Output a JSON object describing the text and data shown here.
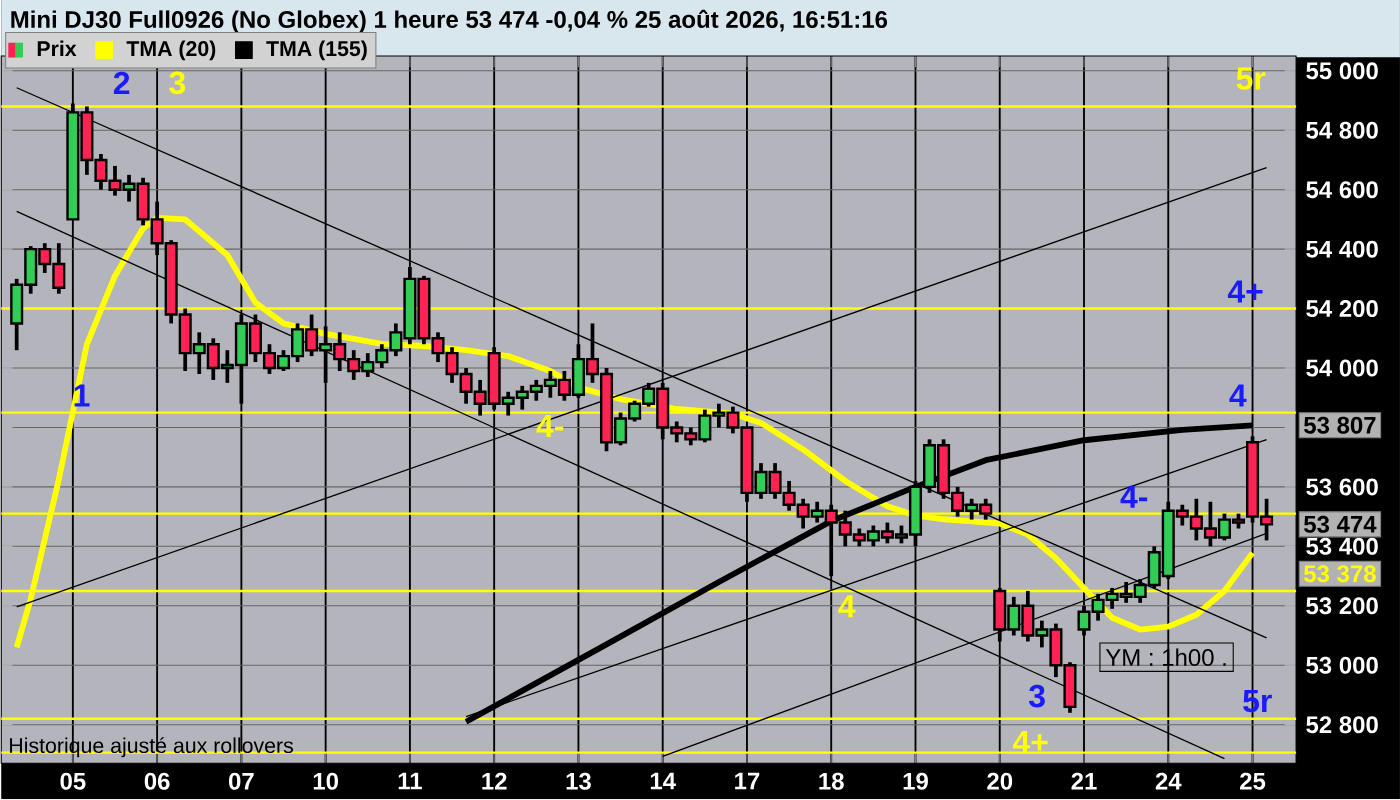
{
  "chart_data": {
    "type": "candlestick",
    "title": "Mini DJ30 Full0926 (No Globex) 1 heure 53 474 -0,04 % 25 août 2026, 16:51:16",
    "categories": [
      null,
      null,
      null,
      null,
      "05",
      null,
      null,
      null,
      null,
      null,
      "06",
      null,
      null,
      null,
      null,
      null,
      "07",
      null,
      null,
      null,
      null,
      null,
      "10",
      null,
      null,
      null,
      null,
      null,
      "11",
      null,
      null,
      null,
      null,
      null,
      "12",
      null,
      null,
      null,
      null,
      null,
      "13",
      null,
      null,
      null,
      null,
      null,
      "14",
      null,
      null,
      null,
      null,
      null,
      "17",
      null,
      null,
      null,
      null,
      null,
      "18",
      null,
      null,
      null,
      null,
      null,
      "19",
      null,
      null,
      null,
      null,
      null,
      "20",
      null,
      null,
      null,
      null,
      null,
      "21",
      null,
      null,
      null,
      null,
      null,
      "24",
      null,
      null,
      null,
      null,
      null,
      "25",
      null
    ],
    "ylim": [
      52670,
      55050
    ],
    "yticks": [
      {
        "value": 52800,
        "label": "52 800"
      },
      {
        "value": 53000,
        "label": "53 000"
      },
      {
        "value": 53200,
        "label": "53 200"
      },
      {
        "value": 53400,
        "label": "53 400"
      },
      {
        "value": 53600,
        "label": "53 600"
      },
      {
        "value": 53800,
        "label": null
      },
      {
        "value": 54000,
        "label": "54 000"
      },
      {
        "value": 54200,
        "label": "54 200"
      },
      {
        "value": 54400,
        "label": "54 400"
      },
      {
        "value": 54600,
        "label": "54 600"
      },
      {
        "value": 54800,
        "label": "54 800"
      },
      {
        "value": 55000,
        "label": "55 000"
      }
    ],
    "grid": true,
    "legend": "top left",
    "series": [
      {
        "name": "Prix",
        "ohlc": [
          [
            54150,
            54300,
            54060,
            54280
          ],
          [
            54280,
            54410,
            54250,
            54400
          ],
          [
            54400,
            54420,
            54320,
            54350
          ],
          [
            54350,
            54420,
            54250,
            54270
          ],
          [
            54500,
            54890,
            54500,
            54860
          ],
          [
            54860,
            54880,
            54650,
            54700
          ],
          [
            54700,
            54720,
            54600,
            54630
          ],
          [
            54630,
            54680,
            54580,
            54600
          ],
          [
            54600,
            54650,
            54560,
            54620
          ],
          [
            54620,
            54640,
            54480,
            54500
          ],
          [
            54500,
            54560,
            54380,
            54420
          ],
          [
            54420,
            54430,
            54150,
            54180
          ],
          [
            54180,
            54200,
            53990,
            54050
          ],
          [
            54050,
            54120,
            53980,
            54080
          ],
          [
            54080,
            54100,
            53960,
            54000
          ],
          [
            54000,
            54060,
            53950,
            54010
          ],
          [
            54010,
            54180,
            53880,
            54150
          ],
          [
            54150,
            54180,
            54020,
            54050
          ],
          [
            54050,
            54080,
            53980,
            54000
          ],
          [
            54000,
            54060,
            53990,
            54040
          ],
          [
            54040,
            54150,
            54020,
            54130
          ],
          [
            54130,
            54180,
            54040,
            54060
          ],
          [
            54060,
            54140,
            53950,
            54080
          ],
          [
            54080,
            54120,
            53990,
            54030
          ],
          [
            54030,
            54060,
            53960,
            53990
          ],
          [
            53990,
            54050,
            53970,
            54020
          ],
          [
            54020,
            54080,
            54000,
            54060
          ],
          [
            54060,
            54150,
            54040,
            54120
          ],
          [
            54100,
            54340,
            54080,
            54300
          ],
          [
            54300,
            54310,
            54080,
            54100
          ],
          [
            54100,
            54120,
            54020,
            54050
          ],
          [
            54050,
            54070,
            53950,
            53980
          ],
          [
            53980,
            54000,
            53880,
            53920
          ],
          [
            53920,
            53960,
            53840,
            53880
          ],
          [
            54050,
            54070,
            53860,
            53880
          ],
          [
            53880,
            53920,
            53840,
            53900
          ],
          [
            53900,
            53940,
            53860,
            53920
          ],
          [
            53920,
            53960,
            53890,
            53940
          ],
          [
            53940,
            53990,
            53900,
            53960
          ],
          [
            53960,
            53990,
            53890,
            53910
          ],
          [
            53910,
            54080,
            53900,
            54030
          ],
          [
            54030,
            54150,
            53950,
            53980
          ],
          [
            53980,
            54000,
            53720,
            53750
          ],
          [
            53750,
            53850,
            53740,
            53830
          ],
          [
            53830,
            53890,
            53820,
            53880
          ],
          [
            53880,
            53950,
            53870,
            53930
          ],
          [
            53930,
            53950,
            53760,
            53800
          ],
          [
            53800,
            53820,
            53750,
            53780
          ],
          [
            53780,
            53800,
            53740,
            53760
          ],
          [
            53760,
            53860,
            53750,
            53840
          ],
          [
            53840,
            53880,
            53800,
            53850
          ],
          [
            53850,
            53870,
            53780,
            53800
          ],
          [
            53800,
            53800,
            53550,
            53580
          ],
          [
            53580,
            53680,
            53560,
            53650
          ],
          [
            53650,
            53680,
            53560,
            53580
          ],
          [
            53580,
            53620,
            53520,
            53540
          ],
          [
            53540,
            53560,
            53460,
            53500
          ],
          [
            53500,
            53550,
            53480,
            53520
          ],
          [
            53520,
            53540,
            53300,
            53480
          ],
          [
            53480,
            53520,
            53400,
            53440
          ],
          [
            53440,
            53460,
            53400,
            53420
          ],
          [
            53420,
            53470,
            53400,
            53450
          ],
          [
            53450,
            53480,
            53410,
            53430
          ],
          [
            53430,
            53470,
            53410,
            53440
          ],
          [
            53440,
            53620,
            53400,
            53600
          ],
          [
            53600,
            53760,
            53580,
            53740
          ],
          [
            53740,
            53760,
            53560,
            53580
          ],
          [
            53580,
            53600,
            53500,
            53520
          ],
          [
            53520,
            53560,
            53490,
            53540
          ],
          [
            53540,
            53560,
            53490,
            53510
          ],
          [
            53250,
            53260,
            53080,
            53120
          ],
          [
            53120,
            53230,
            53100,
            53200
          ],
          [
            53200,
            53250,
            53080,
            53100
          ],
          [
            53100,
            53150,
            53060,
            53120
          ],
          [
            53120,
            53140,
            52960,
            53000
          ],
          [
            53000,
            53010,
            52840,
            52860
          ],
          [
            53120,
            53200,
            53100,
            53180
          ],
          [
            53180,
            53240,
            53150,
            53220
          ],
          [
            53220,
            53260,
            53190,
            53240
          ],
          [
            53240,
            53280,
            53210,
            53230
          ],
          [
            53230,
            53290,
            53210,
            53270
          ],
          [
            53270,
            53400,
            53260,
            53380
          ],
          [
            53300,
            53550,
            53290,
            53520
          ],
          [
            53520,
            53540,
            53470,
            53500
          ],
          [
            53500,
            53560,
            53420,
            53460
          ],
          [
            53460,
            53550,
            53400,
            53430
          ],
          [
            53430,
            53510,
            53420,
            53490
          ],
          [
            53490,
            53510,
            53460,
            53480
          ],
          [
            53750,
            53770,
            53480,
            53500
          ],
          [
            53500,
            53560,
            53420,
            53474
          ]
        ],
        "value_labels": [
          null,
          null,
          null,
          null,
          null,
          null,
          null,
          null,
          null,
          null,
          null,
          null,
          null,
          null,
          null,
          null,
          null,
          null,
          null,
          null,
          null,
          null,
          null,
          null,
          null,
          null,
          null,
          null,
          null,
          null,
          null,
          null,
          null,
          null,
          null,
          null,
          null,
          null,
          null,
          null,
          null,
          null,
          null,
          null,
          null,
          null,
          null,
          null,
          null,
          null,
          null,
          null,
          null,
          null,
          null,
          null,
          null,
          null,
          null,
          null,
          null,
          null,
          null,
          null,
          null,
          null,
          null,
          null,
          null,
          null,
          null,
          null,
          null,
          null,
          null,
          null,
          null,
          null,
          null,
          null,
          null,
          null,
          null,
          null,
          null,
          null,
          null,
          null,
          null,
          "53 474"
        ]
      },
      {
        "name": "TMA (20)",
        "type": "line",
        "color": "#ffff00",
        "values": [
          53060,
          53223,
          null,
          53625,
          null,
          54080,
          null,
          54310,
          null,
          54470,
          54505,
          null,
          54500,
          null,
          null,
          54380,
          null,
          54220,
          null,
          54150,
          null,
          null,
          54115,
          null,
          null,
          null,
          54081,
          null,
          null,
          54074,
          null,
          null,
          54060,
          null,
          null,
          54040,
          null,
          null,
          53990,
          null,
          53935,
          null,
          null,
          53895,
          null,
          null,
          null,
          53862,
          null,
          null,
          null,
          53846,
          null,
          53815,
          null,
          null,
          53726,
          null,
          null,
          53620,
          null,
          null,
          53535,
          null,
          53504,
          null,
          53491,
          null,
          53484,
          null,
          53477,
          null,
          53440,
          null,
          53360,
          null,
          53260,
          null,
          53160,
          null,
          53120,
          null,
          53130,
          null,
          53170,
          null,
          53250,
          null,
          53378,
          null
        ]
      },
      {
        "name": "TMA (155)",
        "type": "line",
        "color": "#000000",
        "values": [
          null,
          null,
          null,
          null,
          null,
          null,
          null,
          null,
          null,
          null,
          null,
          null,
          null,
          null,
          null,
          null,
          null,
          null,
          null,
          null,
          null,
          null,
          null,
          null,
          null,
          null,
          null,
          null,
          null,
          null,
          null,
          null,
          52810,
          null,
          null,
          null,
          null,
          null,
          null,
          null,
          null,
          null,
          53070,
          null,
          null,
          null,
          null,
          null,
          null,
          null,
          53280,
          null,
          null,
          null,
          null,
          null,
          null,
          null,
          53485,
          null,
          null,
          null,
          null,
          null,
          53600,
          null,
          null,
          null,
          null,
          53690,
          null,
          null,
          null,
          null,
          null,
          null,
          53757,
          null,
          null,
          null,
          null,
          null,
          null,
          53792,
          null,
          null,
          null,
          null,
          53807,
          null
        ]
      },
      {
        "type": "line",
        "color": "#000000",
        "values": [
          54943,
          null,
          null,
          null,
          null,
          null,
          null,
          null,
          null,
          null,
          null,
          null,
          null,
          null,
          null,
          null,
          null,
          null,
          null,
          null,
          null,
          null,
          null,
          null,
          null,
          null,
          null,
          null,
          null,
          null,
          null,
          null,
          null,
          null,
          null,
          null,
          null,
          null,
          null,
          null,
          null,
          null,
          null,
          null,
          null,
          null,
          null,
          null,
          null,
          null,
          null,
          null,
          null,
          null,
          null,
          null,
          null,
          null,
          null,
          null,
          null,
          null,
          null,
          null,
          null,
          null,
          null,
          null,
          null,
          null,
          null,
          null,
          null,
          null,
          null,
          null,
          null,
          null,
          null,
          null,
          null,
          null,
          null,
          null,
          null,
          null,
          null,
          null,
          null,
          53092
        ]
      },
      {
        "type": "line",
        "color": "#000000",
        "values": [
          54527,
          null,
          null,
          null,
          null,
          null,
          null,
          null,
          null,
          null,
          null,
          null,
          null,
          null,
          null,
          null,
          null,
          null,
          null,
          null,
          null,
          null,
          null,
          null,
          null,
          null,
          null,
          null,
          null,
          null,
          null,
          null,
          null,
          null,
          null,
          null,
          null,
          null,
          null,
          null,
          null,
          null,
          null,
          null,
          null,
          null,
          null,
          null,
          null,
          null,
          null,
          null,
          null,
          null,
          null,
          null,
          null,
          null,
          null,
          null,
          null,
          null,
          null,
          null,
          null,
          null,
          null,
          null,
          null,
          null,
          null,
          null,
          null,
          null,
          null,
          null,
          null,
          null,
          null,
          null,
          null,
          null,
          null,
          null,
          null,
          null,
          52686,
          null,
          null,
          null
        ]
      },
      {
        "type": "line",
        "color": "#000000",
        "values": [
          53196,
          null,
          null,
          null,
          null,
          null,
          null,
          null,
          null,
          null,
          null,
          null,
          null,
          null,
          null,
          null,
          null,
          null,
          null,
          null,
          null,
          null,
          null,
          null,
          null,
          null,
          null,
          null,
          null,
          null,
          null,
          null,
          null,
          null,
          null,
          null,
          null,
          null,
          null,
          null,
          null,
          null,
          null,
          null,
          null,
          null,
          null,
          null,
          null,
          null,
          null,
          null,
          null,
          null,
          null,
          null,
          null,
          null,
          null,
          null,
          null,
          null,
          null,
          null,
          null,
          null,
          null,
          null,
          null,
          null,
          null,
          null,
          null,
          null,
          null,
          null,
          null,
          null,
          null,
          null,
          null,
          null,
          null,
          null,
          null,
          null,
          null,
          null,
          null,
          54674
        ]
      },
      {
        "type": "line",
        "color": "#000000",
        "values": [
          null,
          null,
          null,
          null,
          null,
          null,
          null,
          null,
          null,
          null,
          null,
          null,
          null,
          null,
          null,
          null,
          null,
          null,
          null,
          null,
          null,
          null,
          null,
          null,
          null,
          null,
          null,
          null,
          null,
          null,
          null,
          null,
          52827,
          null,
          null,
          null,
          null,
          null,
          null,
          null,
          null,
          null,
          null,
          null,
          null,
          null,
          null,
          null,
          null,
          null,
          null,
          null,
          null,
          null,
          null,
          null,
          null,
          null,
          null,
          null,
          null,
          null,
          null,
          null,
          null,
          null,
          null,
          null,
          null,
          null,
          null,
          null,
          null,
          null,
          null,
          null,
          null,
          null,
          null,
          null,
          null,
          null,
          null,
          null,
          null,
          null,
          null,
          null,
          null,
          53759
        ]
      },
      {
        "type": "line",
        "color": "#000000",
        "values": [
          null,
          null,
          null,
          null,
          null,
          null,
          null,
          null,
          null,
          null,
          null,
          null,
          null,
          null,
          null,
          null,
          null,
          null,
          null,
          null,
          null,
          null,
          null,
          null,
          null,
          null,
          null,
          null,
          null,
          null,
          null,
          null,
          null,
          null,
          null,
          null,
          null,
          null,
          null,
          null,
          null,
          null,
          null,
          null,
          null,
          null,
          52693,
          null,
          null,
          null,
          null,
          null,
          null,
          null,
          null,
          null,
          null,
          null,
          null,
          null,
          null,
          null,
          null,
          null,
          null,
          null,
          null,
          null,
          null,
          null,
          null,
          null,
          null,
          null,
          null,
          null,
          null,
          null,
          null,
          null,
          null,
          null,
          null,
          null,
          null,
          null,
          null,
          null,
          null,
          53444
        ]
      }
    ],
    "ref_lines": [
      {
        "axis": "y",
        "value": 54880,
        "color": "#ffff00"
      },
      {
        "axis": "y",
        "value": 54200,
        "color": "#ffff00"
      },
      {
        "axis": "y",
        "value": 53850,
        "color": "#ffff00"
      },
      {
        "axis": "y",
        "value": 53510,
        "color": "#ffff00"
      },
      {
        "axis": "y",
        "value": 53250,
        "color": "#ffff00"
      },
      {
        "axis": "y",
        "value": 52820,
        "color": "#ffff00"
      },
      {
        "axis": "y",
        "value": 52706,
        "color": "#ffff00"
      }
    ],
    "annotations": [
      "Historique ajusté aux rollovers",
      "2",
      "3",
      "1",
      "4-",
      "4",
      "3",
      "YM : 1h00 .",
      "5r",
      "4+",
      "4",
      "4-",
      "5r",
      "4+",
      "53 807",
      "53 378"
    ]
  }
}
